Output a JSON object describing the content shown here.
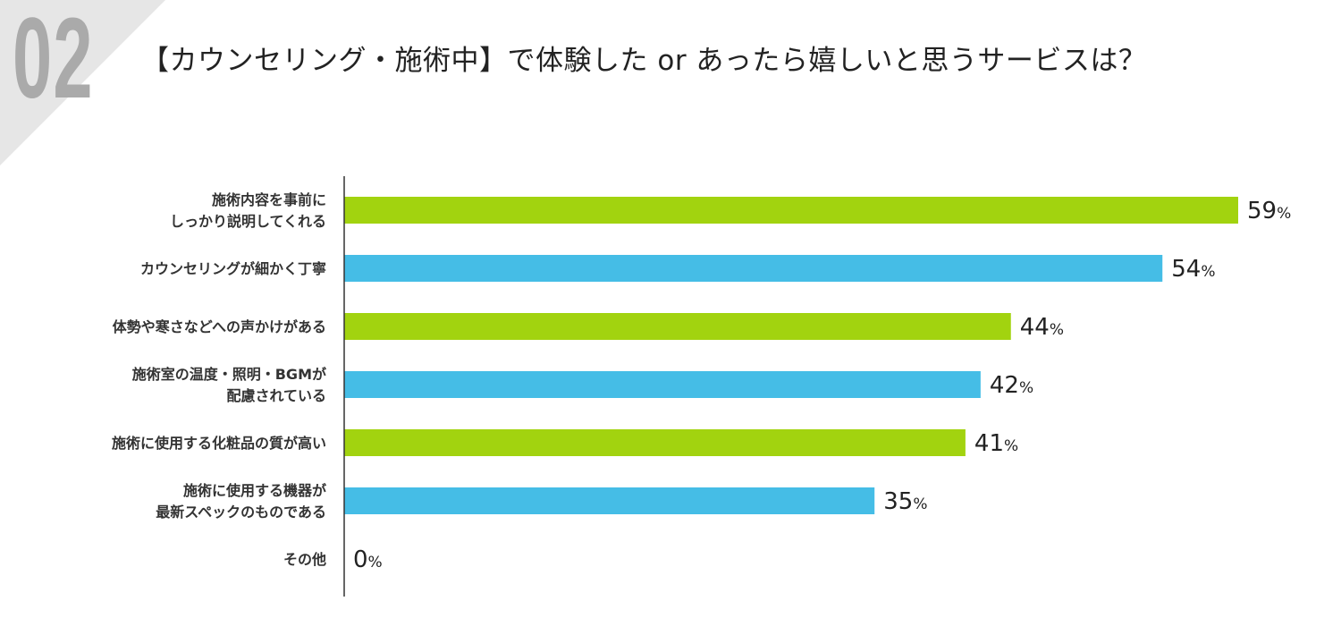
{
  "badge": {
    "number": "02"
  },
  "title": "【カウンセリング・施術中】で体験した or あったら嬉しいと思うサービスは？",
  "colors": {
    "green": "#a2d30f",
    "blue": "#45bde6",
    "axis": "#333333",
    "corner": "#e6e6e6"
  },
  "chart_data": {
    "type": "bar",
    "orientation": "horizontal",
    "title": "【カウンセリング・施術中】で体験した or あったら嬉しいと思うサービスは？",
    "unit": "%",
    "xlim": [
      0,
      60
    ],
    "grid": false,
    "categories": [
      [
        "施術内容を事前に",
        "しっかり説明してくれる"
      ],
      [
        "カウンセリングが細かく丁寧"
      ],
      [
        "体勢や寒さなどへの声かけがある"
      ],
      [
        "施術室の温度・照明・BGMが",
        "配慮されている"
      ],
      [
        "施術に使用する化粧品の質が高い"
      ],
      [
        "施術に使用する機器が",
        "最新スペックのものである"
      ],
      [
        "その他"
      ]
    ],
    "values": [
      59,
      54,
      44,
      42,
      41,
      35,
      0
    ],
    "bar_colors": [
      "green",
      "blue",
      "green",
      "blue",
      "green",
      "blue",
      "green"
    ]
  }
}
